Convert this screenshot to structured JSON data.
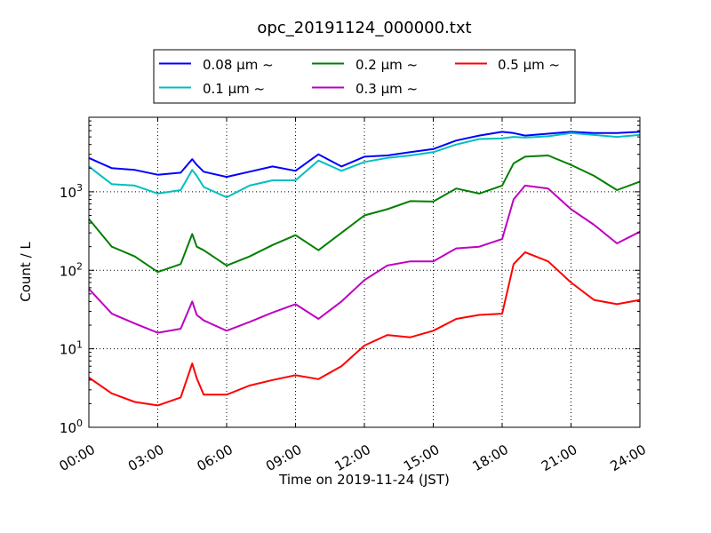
{
  "chart_data": {
    "type": "line",
    "title": "opc_20191124_000000.txt",
    "xlabel": "Time on 2019-11-24 (JST)",
    "ylabel": "Count / L",
    "xlim": [
      "00:00",
      "24:00"
    ],
    "ylim": [
      1,
      8900
    ],
    "yscale": "log",
    "grid": true,
    "legend_position": "top, above plot, 3 columns",
    "x_ticks": [
      "00:00",
      "03:00",
      "06:00",
      "09:00",
      "12:00",
      "15:00",
      "18:00",
      "21:00",
      "24:00"
    ],
    "y_ticks": [
      {
        "value": 1,
        "base": "10",
        "exp": "0"
      },
      {
        "value": 10,
        "base": "10",
        "exp": "1"
      },
      {
        "value": 100,
        "base": "10",
        "exp": "2"
      },
      {
        "value": 1000,
        "base": "10",
        "exp": "3"
      }
    ],
    "x_hours": [
      0,
      1,
      2,
      3,
      4,
      4.5,
      4.7,
      5,
      6,
      7,
      8,
      9,
      10,
      11,
      12,
      13,
      14,
      15,
      16,
      17,
      18,
      18.5,
      19,
      20,
      21,
      22,
      23,
      24
    ],
    "series": [
      {
        "name": "0.08 μm ~",
        "color": "#0000ff",
        "values": [
          2700,
          2000,
          1900,
          1650,
          1750,
          2600,
          2200,
          1800,
          1550,
          1800,
          2100,
          1850,
          3000,
          2100,
          2800,
          2900,
          3200,
          3500,
          4500,
          5200,
          5800,
          5600,
          5200,
          5500,
          5800,
          5600,
          5600,
          5800
        ]
      },
      {
        "name": "0.1 μm ~",
        "color": "#00bfbf",
        "values": [
          2100,
          1250,
          1200,
          950,
          1050,
          1900,
          1600,
          1150,
          850,
          1200,
          1400,
          1400,
          2500,
          1850,
          2400,
          2700,
          2900,
          3200,
          4000,
          4700,
          4800,
          5000,
          4900,
          5100,
          5600,
          5300,
          5000,
          5300
        ]
      },
      {
        "name": "0.2 μm ~",
        "color": "#008000",
        "values": [
          450,
          200,
          150,
          95,
          120,
          290,
          200,
          180,
          115,
          150,
          210,
          280,
          180,
          300,
          500,
          600,
          760,
          750,
          1100,
          950,
          1200,
          2300,
          2800,
          2900,
          2200,
          1600,
          1050,
          1350
        ]
      },
      {
        "name": "0.3 μm ~",
        "color": "#bf00bf",
        "values": [
          58,
          28,
          21,
          16,
          18,
          40,
          27,
          23,
          17,
          22,
          29,
          37,
          24,
          40,
          75,
          115,
          130,
          130,
          190,
          200,
          250,
          800,
          1200,
          1100,
          600,
          380,
          220,
          310
        ]
      },
      {
        "name": "0.5 μm ~",
        "color": "#ff0000",
        "values": [
          4.3,
          2.7,
          2.1,
          1.9,
          2.4,
          6.5,
          4.2,
          2.6,
          2.6,
          3.4,
          4,
          4.6,
          4.1,
          6,
          11,
          15,
          14,
          17,
          24,
          27,
          28,
          120,
          170,
          130,
          70,
          42,
          37,
          42
        ]
      }
    ]
  }
}
